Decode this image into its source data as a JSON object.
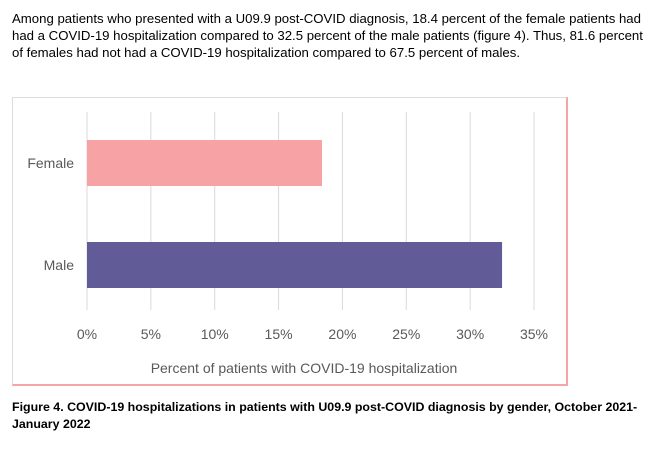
{
  "document": {
    "paragraph": "Among patients who presented with a U09.9 post-COVID diagnosis, 18.4 percent of the female patients had had a COVID-19 hospitalization compared to 32.5 percent of the male patients (figure 4). Thus, 81.6 percent of females had not had a COVID-19 hospitalization compared to 67.5 percent of males.",
    "caption": "Figure 4. COVID-19 hospitalizations in patients with U09.9 post-COVID diagnosis by gender, October 2021-January 2022"
  },
  "chart_data": {
    "type": "bar",
    "orientation": "horizontal",
    "title": "",
    "categories": [
      "Female",
      "Male"
    ],
    "values": [
      18.4,
      32.5
    ],
    "colors": [
      "#f7a3a6",
      "#615c98"
    ],
    "xlabel": "Percent of patients with COVID-19 hospitalization",
    "ylabel": "",
    "xlim": [
      0,
      35
    ],
    "xticks": [
      0,
      5,
      10,
      15,
      20,
      25,
      30,
      35
    ],
    "xtick_labels": [
      "0%",
      "5%",
      "10%",
      "15%",
      "20%",
      "25%",
      "30%",
      "35%"
    ],
    "grid": "vertical",
    "legend": "none",
    "gridline_color": "#d9d9d9",
    "frame_accent_color": "#f4a5a8"
  }
}
